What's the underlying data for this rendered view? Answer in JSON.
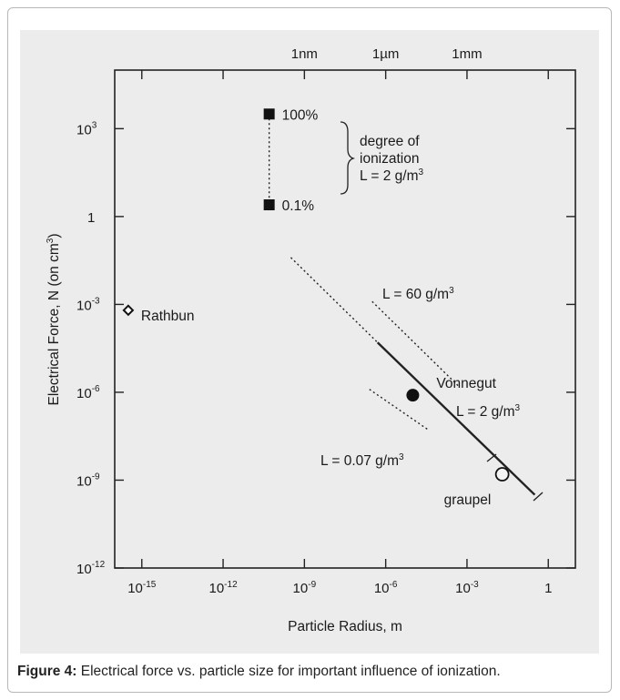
{
  "caption": {
    "label": "Figure 4:",
    "text": " Electrical force vs. particle size for important influence of ionization."
  },
  "chart_data": {
    "type": "scatter",
    "title": "",
    "xlabel": "Particle Radius, m",
    "ylabel": "Electrical Force, N (on cm",
    "ylabel_sup": "3",
    "ylabel_end": ")",
    "x_scale": "log",
    "y_scale": "log",
    "xlim_exp": [
      -16,
      1
    ],
    "ylim_exp": [
      -12,
      5
    ],
    "x_ticks": [
      {
        "exp": -15,
        "label": "10",
        "sup": "-15"
      },
      {
        "exp": -12,
        "label": "10",
        "sup": "-12"
      },
      {
        "exp": -9,
        "label": "10",
        "sup": "-9"
      },
      {
        "exp": -6,
        "label": "10",
        "sup": "-6"
      },
      {
        "exp": -3,
        "label": "10",
        "sup": "-3"
      },
      {
        "exp": 0,
        "label": "1",
        "sup": ""
      }
    ],
    "y_ticks": [
      {
        "exp": -12,
        "label": "10",
        "sup": "-12"
      },
      {
        "exp": -9,
        "label": "10",
        "sup": "-9"
      },
      {
        "exp": -6,
        "label": "10",
        "sup": "-6"
      },
      {
        "exp": -3,
        "label": "10",
        "sup": "-3"
      },
      {
        "exp": 0,
        "label": "1",
        "sup": ""
      },
      {
        "exp": 3,
        "label": "10",
        "sup": "3"
      }
    ],
    "top_axis_ticks": [
      {
        "exp": -9,
        "label": "1nm"
      },
      {
        "exp": -6,
        "label": "1µm"
      },
      {
        "exp": -3,
        "label": "1mm"
      }
    ],
    "grid": false,
    "points": [
      {
        "name": "Rathbun",
        "x_exp": -15.5,
        "y_exp": -3.2,
        "marker": "diamond",
        "label": "Rathbun"
      },
      {
        "name": "100%",
        "x_exp": -10.3,
        "y_exp": 3.5,
        "marker": "square",
        "label": "100%"
      },
      {
        "name": "0.1%",
        "x_exp": -10.3,
        "y_exp": 0.4,
        "marker": "square",
        "label": "0.1%"
      },
      {
        "name": "Vonnegut",
        "x_exp": -5.0,
        "y_exp": -6.1,
        "marker": "filled-circle",
        "label": "Vonnegut"
      },
      {
        "name": "graupel",
        "x_exp": -1.7,
        "y_exp": -8.8,
        "marker": "open-circle",
        "label": "graupel"
      }
    ],
    "lines": [
      {
        "name": "L = 2 g/m3 dotted",
        "style": "dotted",
        "x_exp": [
          -9.5,
          -6.3
        ],
        "y_exp": [
          -1.4,
          -4.3
        ]
      },
      {
        "name": "L = 2 g/m3 solid",
        "style": "solid",
        "x_exp": [
          -6.3,
          -0.5
        ],
        "y_exp": [
          -4.3,
          -9.5
        ]
      },
      {
        "name": "L = 60 g/m3",
        "style": "dotted",
        "x_exp": [
          -6.5,
          -3.3
        ],
        "y_exp": [
          -2.9,
          -5.8
        ]
      },
      {
        "name": "L = 0.07 g/m3",
        "style": "dotted",
        "x_exp": [
          -6.6,
          -4.4
        ],
        "y_exp": [
          -5.9,
          -7.3
        ]
      },
      {
        "name": "ionization range",
        "style": "dotted",
        "x_exp": [
          -10.3,
          -10.3
        ],
        "y_exp": [
          3.5,
          0.4
        ]
      }
    ],
    "annotations": {
      "degree_line1": "degree of",
      "degree_line2": "ionization",
      "degree_line3": "L = 2 g/m",
      "l60": "L = 60 g/m",
      "vonnegut_L": "L = 2 g/m",
      "l007": "L = 0.07 g/m",
      "cube": "3"
    }
  }
}
